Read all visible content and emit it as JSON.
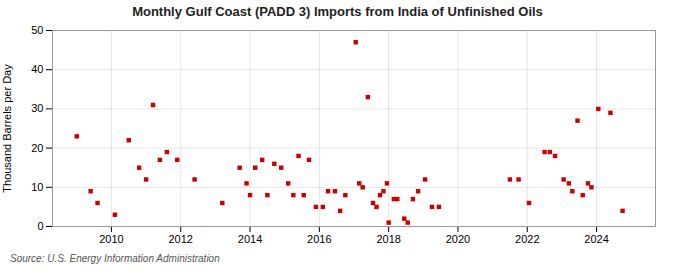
{
  "chart_data": {
    "type": "scatter",
    "title": "Monthly Gulf Coast (PADD 3) Imports from India of Unfinished Oils",
    "ylabel": "Thousand Barrels per Day",
    "source": "Source: U.S. Energy Information Administration",
    "color": "#cc0000",
    "marker": "square",
    "grid": true,
    "xlim": [
      2008.3,
      2025.7
    ],
    "ylim": [
      0,
      50
    ],
    "xticks": [
      2010,
      2012,
      2014,
      2016,
      2018,
      2020,
      2022,
      2024
    ],
    "yticks": [
      0,
      10,
      20,
      30,
      40,
      50
    ],
    "x": [
      2009.0,
      2009.4,
      2009.6,
      2010.1,
      2010.5,
      2010.8,
      2011.0,
      2011.2,
      2011.4,
      2011.6,
      2011.9,
      2012.4,
      2013.2,
      2013.7,
      2013.9,
      2014.0,
      2014.15,
      2014.35,
      2014.5,
      2014.7,
      2014.9,
      2015.1,
      2015.25,
      2015.4,
      2015.55,
      2015.7,
      2015.9,
      2016.1,
      2016.25,
      2016.45,
      2016.6,
      2016.75,
      2017.05,
      2017.15,
      2017.25,
      2017.4,
      2017.55,
      2017.65,
      2017.75,
      2017.85,
      2017.95,
      2018.0,
      2018.15,
      2018.25,
      2018.45,
      2018.55,
      2018.7,
      2018.85,
      2019.05,
      2019.25,
      2019.45,
      2021.5,
      2021.75,
      2022.05,
      2022.5,
      2022.65,
      2022.8,
      2023.05,
      2023.2,
      2023.3,
      2023.45,
      2023.6,
      2023.75,
      2023.85,
      2024.05,
      2024.4,
      2024.75
    ],
    "values": [
      23.0,
      9.0,
      6.0,
      3.0,
      22.0,
      15.0,
      12.0,
      31.0,
      17.0,
      19.0,
      17.0,
      12.0,
      6.0,
      15.0,
      11.0,
      8.0,
      15.0,
      17.0,
      8.0,
      16.0,
      15.0,
      11.0,
      8.0,
      18.0,
      8.0,
      17.0,
      5.0,
      5.0,
      9.0,
      9.0,
      4.0,
      8.0,
      47.0,
      11.0,
      10.0,
      33.0,
      6.0,
      5.0,
      8.0,
      9.0,
      11.0,
      1.0,
      7.0,
      7.0,
      2.0,
      1.0,
      7.0,
      9.0,
      12.0,
      5.0,
      5.0,
      12.0,
      12.0,
      6.0,
      19.0,
      19.0,
      18.0,
      12.0,
      11.0,
      9.0,
      27.0,
      8.0,
      11.0,
      10.0,
      30.0,
      29.0,
      4.0
    ]
  }
}
